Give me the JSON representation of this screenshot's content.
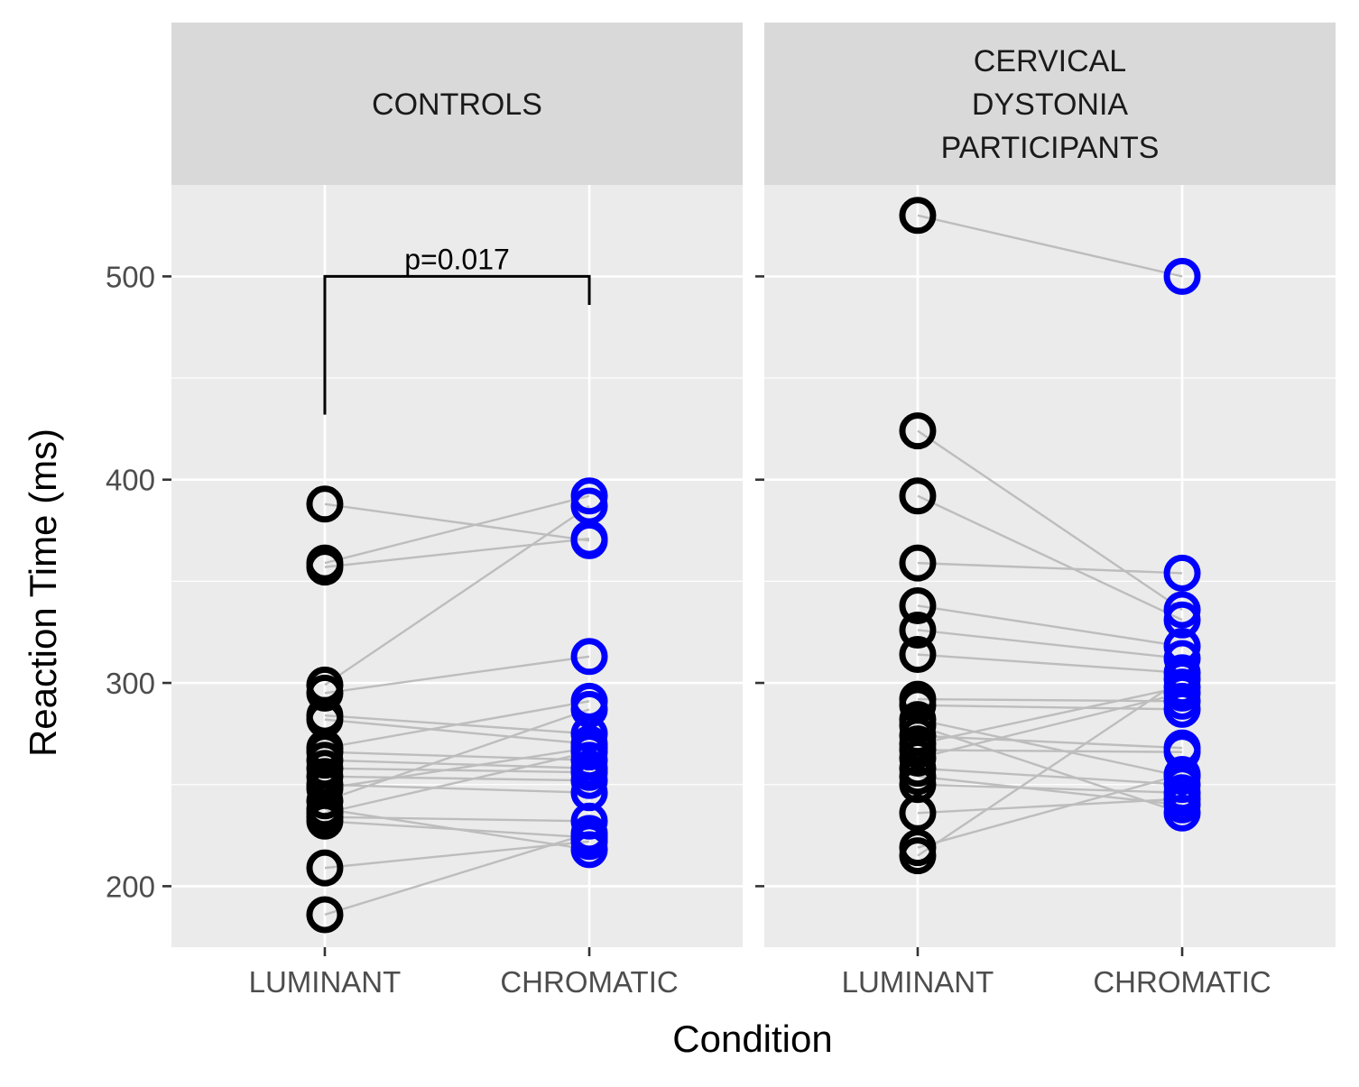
{
  "chart_data": {
    "type": "scatter",
    "subtype": "paired-dot-plot",
    "xlabel": "Condition",
    "ylabel": "Reaction Time (ms)",
    "ylim": [
      170,
      545
    ],
    "yticks": [
      200,
      300,
      400,
      500
    ],
    "grid": true,
    "categories": [
      "LUMINANT",
      "CHROMATIC"
    ],
    "colors": {
      "LUMINANT": "#000000",
      "CHROMATIC": "#0000ff",
      "pair_line": "#bdbdbd",
      "panel_bg": "#ebebeb",
      "strip_bg": "#d9d9d9",
      "grid": "#ffffff"
    },
    "panels": [
      {
        "title": [
          "CONTROLS"
        ],
        "annotation": {
          "text": "p=0.017",
          "y": 500,
          "left_end": 432,
          "right_end": 486
        },
        "pairs": [
          [
            388,
            370
          ],
          [
            359,
            392
          ],
          [
            357,
            371
          ],
          [
            299,
            387
          ],
          [
            295,
            313
          ],
          [
            284,
            275
          ],
          [
            282,
            270
          ],
          [
            268,
            291
          ],
          [
            266,
            262
          ],
          [
            262,
            258
          ],
          [
            258,
            256
          ],
          [
            254,
            252
          ],
          [
            250,
            246
          ],
          [
            248,
            268
          ],
          [
            242,
            287
          ],
          [
            238,
            218
          ],
          [
            236,
            266
          ],
          [
            234,
            232
          ],
          [
            232,
            224
          ],
          [
            209,
            222
          ],
          [
            186,
            226
          ]
        ]
      },
      {
        "title": [
          "CERVICAL",
          "DYSTONIA",
          "PARTICIPANTS"
        ],
        "pairs": [
          [
            530,
            500
          ],
          [
            424,
            336
          ],
          [
            392,
            331
          ],
          [
            359,
            354
          ],
          [
            338,
            318
          ],
          [
            326,
            312
          ],
          [
            314,
            305
          ],
          [
            292,
            291
          ],
          [
            289,
            287
          ],
          [
            282,
            254
          ],
          [
            279,
            236
          ],
          [
            274,
            268
          ],
          [
            270,
            298
          ],
          [
            267,
            266
          ],
          [
            263,
            295
          ],
          [
            258,
            250
          ],
          [
            254,
            240
          ],
          [
            250,
            246
          ],
          [
            236,
            243
          ],
          [
            219,
            255
          ],
          [
            215,
            302
          ]
        ]
      }
    ]
  }
}
